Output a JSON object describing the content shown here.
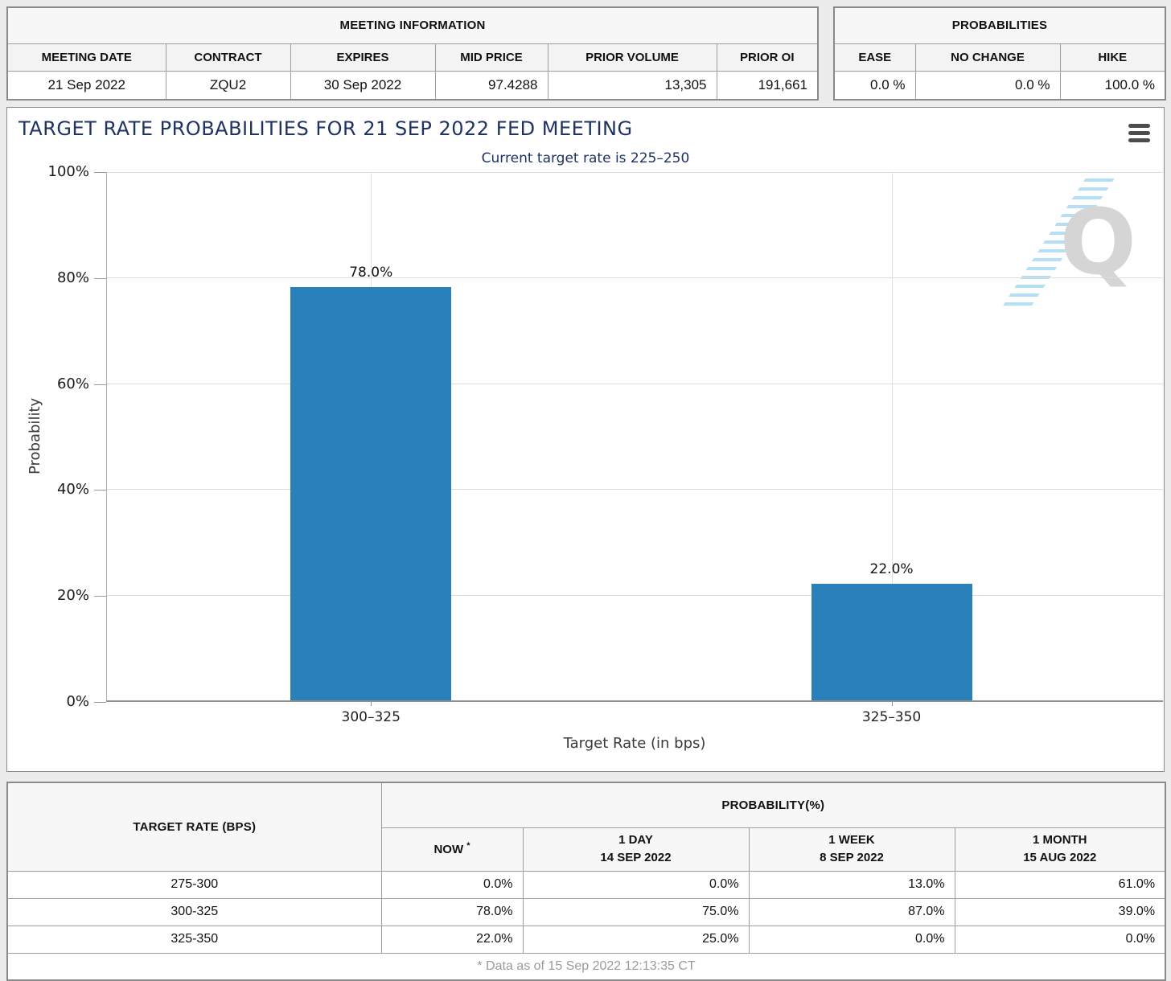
{
  "meeting_info": {
    "title": "MEETING INFORMATION",
    "headers": [
      "MEETING DATE",
      "CONTRACT",
      "EXPIRES",
      "MID PRICE",
      "PRIOR VOLUME",
      "PRIOR OI"
    ],
    "values": [
      "21 Sep 2022",
      "ZQU2",
      "30 Sep 2022",
      "97.4288",
      "13,305",
      "191,661"
    ]
  },
  "probabilities_info": {
    "title": "PROBABILITIES",
    "headers": [
      "EASE",
      "NO CHANGE",
      "HIKE"
    ],
    "values": [
      "0.0 %",
      "0.0 %",
      "100.0 %"
    ]
  },
  "chart": {
    "title": "TARGET RATE PROBABILITIES FOR 21 SEP 2022 FED MEETING",
    "subtitle": "Current target rate is 225–250",
    "menu_icon": "hamburger-menu",
    "watermark_letter": "Q"
  },
  "chart_data": {
    "type": "bar",
    "title": "TARGET RATE PROBABILITIES FOR 21 SEP 2022 FED MEETING",
    "subtitle": "Current target rate is 225–250",
    "categories": [
      "300–325",
      "325–350"
    ],
    "values": [
      78.0,
      22.0
    ],
    "bar_labels": [
      "78.0%",
      "22.0%"
    ],
    "xlabel": "Target Rate (in bps)",
    "ylabel": "Probability",
    "ylim": [
      0,
      100
    ],
    "ytick_step": 20,
    "yticks": [
      "0%",
      "20%",
      "40%",
      "60%",
      "80%",
      "100%"
    ],
    "bar_color": "#2a80b9",
    "grid": true,
    "legend": false
  },
  "history_table": {
    "rate_header": "TARGET RATE (BPS)",
    "prob_header": "PROBABILITY(%)",
    "now_label": "NOW",
    "now_sup": "*",
    "period_headers": [
      {
        "label": "1 DAY",
        "date": "14 SEP 2022"
      },
      {
        "label": "1 WEEK",
        "date": "8 SEP 2022"
      },
      {
        "label": "1 MONTH",
        "date": "15 AUG 2022"
      }
    ],
    "rows": [
      {
        "rate": "275-300",
        "now": "0.0%",
        "day": "0.0%",
        "week": "13.0%",
        "month": "61.0%"
      },
      {
        "rate": "300-325",
        "now": "78.0%",
        "day": "75.0%",
        "week": "87.0%",
        "month": "39.0%"
      },
      {
        "rate": "325-350",
        "now": "22.0%",
        "day": "25.0%",
        "week": "0.0%",
        "month": "0.0%"
      }
    ],
    "footnote": "* Data as of 15 Sep 2022 12:13:35 CT"
  },
  "colors": {
    "bar": "#2a80b9",
    "title_navy": "#1e3264",
    "now_highlight": "#f8f8d2",
    "page_background": "#ececec"
  }
}
